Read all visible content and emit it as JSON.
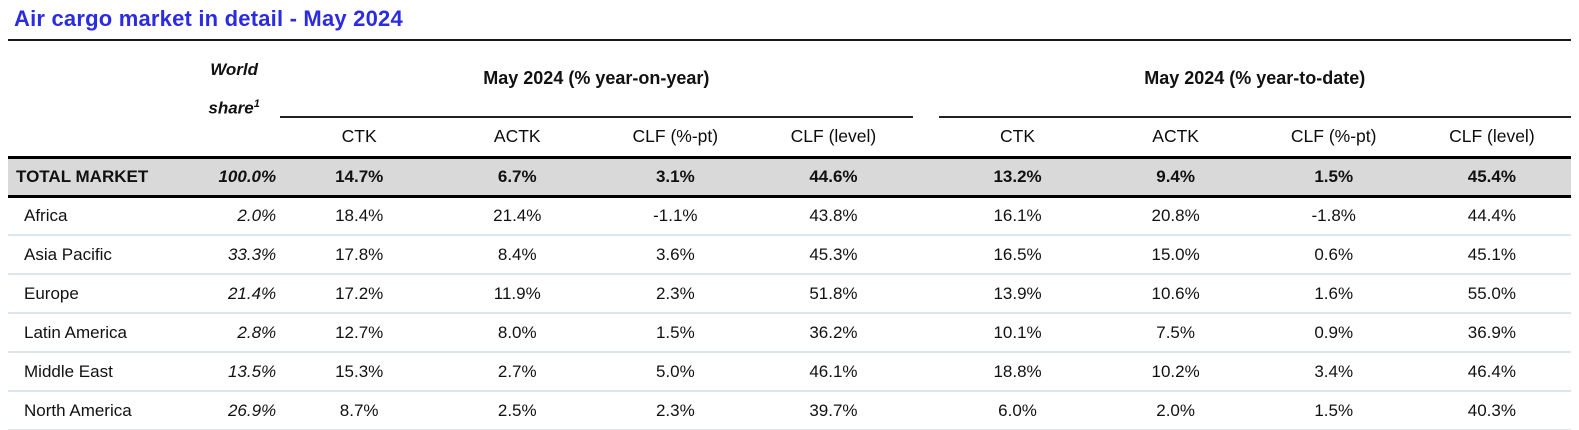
{
  "title": "Air cargo market in detail - May 2024",
  "table": {
    "world_share_header": {
      "line1": "World",
      "line2": "share",
      "sup": "1"
    },
    "groups": [
      {
        "label": "May 2024 (% year-on-year)",
        "columns": [
          "CTK",
          "ACTK",
          "CLF (%-pt)",
          "CLF (level)"
        ]
      },
      {
        "label": "May 2024 (% year-to-date)",
        "columns": [
          "CTK",
          "ACTK",
          "CLF (%-pt)",
          "CLF (level)"
        ]
      }
    ],
    "rows": [
      {
        "region": "TOTAL MARKET",
        "world_share": "100.0%",
        "is_total": true,
        "yoy": [
          "14.7%",
          "6.7%",
          "3.1%",
          "44.6%"
        ],
        "ytd": [
          "13.2%",
          "9.4%",
          "1.5%",
          "45.4%"
        ]
      },
      {
        "region": "Africa",
        "world_share": "2.0%",
        "yoy": [
          "18.4%",
          "21.4%",
          "-1.1%",
          "43.8%"
        ],
        "ytd": [
          "16.1%",
          "20.8%",
          "-1.8%",
          "44.4%"
        ]
      },
      {
        "region": "Asia Pacific",
        "world_share": "33.3%",
        "yoy": [
          "17.8%",
          "8.4%",
          "3.6%",
          "45.3%"
        ],
        "ytd": [
          "16.5%",
          "15.0%",
          "0.6%",
          "45.1%"
        ]
      },
      {
        "region": "Europe",
        "world_share": "21.4%",
        "yoy": [
          "17.2%",
          "11.9%",
          "2.3%",
          "51.8%"
        ],
        "ytd": [
          "13.9%",
          "10.6%",
          "1.6%",
          "55.0%"
        ]
      },
      {
        "region": "Latin America",
        "world_share": "2.8%",
        "yoy": [
          "12.7%",
          "8.0%",
          "1.5%",
          "36.2%"
        ],
        "ytd": [
          "10.1%",
          "7.5%",
          "0.9%",
          "36.9%"
        ]
      },
      {
        "region": "Middle East",
        "world_share": "13.5%",
        "yoy": [
          "15.3%",
          "2.7%",
          "5.0%",
          "46.1%"
        ],
        "ytd": [
          "18.8%",
          "10.2%",
          "3.4%",
          "46.4%"
        ]
      },
      {
        "region": "North America",
        "world_share": "26.9%",
        "yoy": [
          "8.7%",
          "2.5%",
          "2.3%",
          "39.7%"
        ],
        "ytd": [
          "6.0%",
          "2.0%",
          "1.5%",
          "40.3%"
        ]
      }
    ],
    "colors": {
      "title": "#2b2be2",
      "dark_line": "#1a1a1a",
      "total_row_bg": "#d9d9d9",
      "row_divider": "#dde6f0"
    }
  }
}
